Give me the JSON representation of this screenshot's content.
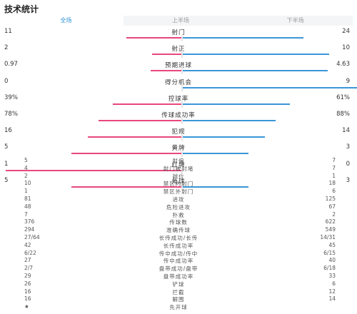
{
  "title": "技术统计",
  "tabs": [
    "全场",
    "上半场",
    "下半场"
  ],
  "active_tab": 0,
  "colors": {
    "home": "#e8477c",
    "away": "#3a96d8",
    "tab_active": "#2a8fd6"
  },
  "main_stats": [
    {
      "label": "射门",
      "home": "11",
      "away": "24",
      "home_share": 0.314,
      "away_share": 0.686
    },
    {
      "label": "射正",
      "home": "2",
      "away": "10",
      "home_share": 0.167,
      "away_share": 0.833
    },
    {
      "label": "预期进球",
      "home": "0.97",
      "away": "4.63",
      "home_share": 0.173,
      "away_share": 0.827
    },
    {
      "label": "得分机会",
      "home": "0",
      "away": "9",
      "home_share": 0.0,
      "away_share": 1.0
    },
    {
      "label": "控球率",
      "home": "39%",
      "away": "61%",
      "home_share": 0.39,
      "away_share": 0.61
    },
    {
      "label": "传球成功率",
      "home": "78%",
      "away": "88%",
      "home_share": 0.47,
      "away_share": 0.53
    },
    {
      "label": "犯规",
      "home": "16",
      "away": "14",
      "home_share": 0.533,
      "away_share": 0.467
    },
    {
      "label": "黄牌",
      "home": "5",
      "away": "3",
      "home_share": 0.625,
      "away_share": 0.375
    },
    {
      "label": "红牌",
      "home": "1",
      "away": "0",
      "home_share": 1.0,
      "away_share": 0.0
    },
    {
      "label": "角球",
      "home": "5",
      "away": "3",
      "home_share": 0.625,
      "away_share": 0.375
    }
  ],
  "detail_stats": [
    {
      "label": "射偏",
      "home": "5",
      "away": "7"
    },
    {
      "label": "射门被封堵",
      "home": "4",
      "away": "7"
    },
    {
      "label": "越位",
      "home": "2",
      "away": "1"
    },
    {
      "label": "禁区内射门",
      "home": "10",
      "away": "18"
    },
    {
      "label": "禁区外射门",
      "home": "1",
      "away": "6"
    },
    {
      "label": "进攻",
      "home": "81",
      "away": "125"
    },
    {
      "label": "危险进攻",
      "home": "48",
      "away": "67"
    },
    {
      "label": "扑救",
      "home": "7",
      "away": "2"
    },
    {
      "label": "传球数",
      "home": "376",
      "away": "622"
    },
    {
      "label": "准确传球",
      "home": "294",
      "away": "549"
    },
    {
      "label": "长传成功/长传",
      "home": "27/64",
      "away": "14/31"
    },
    {
      "label": "长传成功率",
      "home": "42",
      "away": "45"
    },
    {
      "label": "传中成功/传中",
      "home": "6/22",
      "away": "6/15"
    },
    {
      "label": "传中成功率",
      "home": "27",
      "away": "40"
    },
    {
      "label": "盘带成功/盘带",
      "home": "2/7",
      "away": "6/18"
    },
    {
      "label": "盘带成功率",
      "home": "29",
      "away": "33"
    },
    {
      "label": "铲球",
      "home": "26",
      "away": "6"
    },
    {
      "label": "拦截",
      "home": "16",
      "away": "12"
    },
    {
      "label": "解围",
      "home": "16",
      "away": "14"
    },
    {
      "label": "先开球",
      "home": "★",
      "away": ""
    }
  ]
}
